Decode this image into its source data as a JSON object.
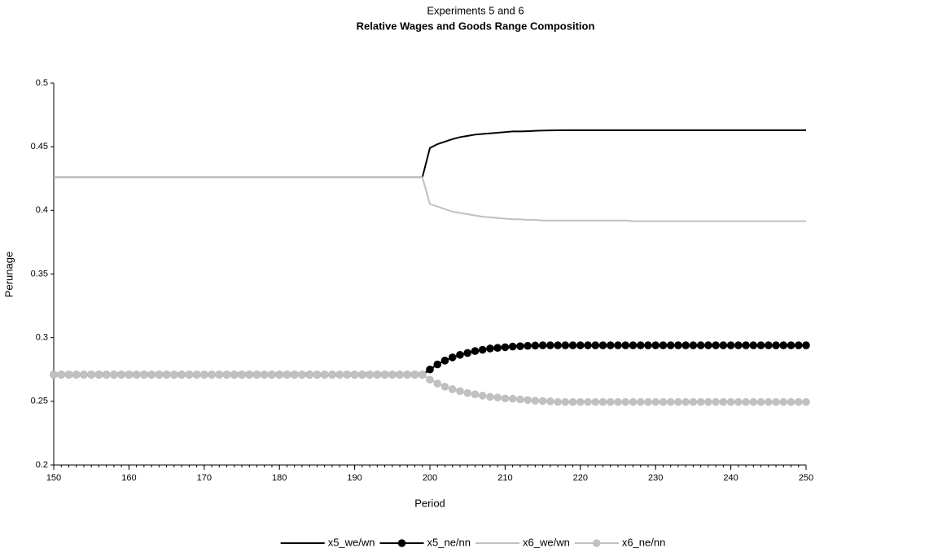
{
  "chart_data": {
    "type": "line",
    "subtitle": "Experiments 5 and 6",
    "title": "Relative Wages and Goods Range Composition",
    "x_label": "Period",
    "y_label": "Perunage",
    "x": [
      150,
      151,
      152,
      153,
      154,
      155,
      156,
      157,
      158,
      159,
      160,
      161,
      162,
      163,
      164,
      165,
      166,
      167,
      168,
      169,
      170,
      171,
      172,
      173,
      174,
      175,
      176,
      177,
      178,
      179,
      180,
      181,
      182,
      183,
      184,
      185,
      186,
      187,
      188,
      189,
      190,
      191,
      192,
      193,
      194,
      195,
      196,
      197,
      198,
      199,
      200,
      201,
      202,
      203,
      204,
      205,
      206,
      207,
      208,
      209,
      210,
      211,
      212,
      213,
      214,
      215,
      216,
      217,
      218,
      219,
      220,
      221,
      222,
      223,
      224,
      225,
      226,
      227,
      228,
      229,
      230,
      231,
      232,
      233,
      234,
      235,
      236,
      237,
      238,
      239,
      240,
      241,
      242,
      243,
      244,
      245,
      246,
      247,
      248,
      249,
      250
    ],
    "xlim": [
      150,
      250
    ],
    "xticks": [
      150,
      160,
      170,
      180,
      190,
      200,
      210,
      220,
      230,
      240,
      250
    ],
    "ylim": [
      0.2,
      0.5
    ],
    "yticks": [
      0.2,
      0.25,
      0.3,
      0.35,
      0.4,
      0.45,
      0.5
    ],
    "series": [
      {
        "name": "x5_we/wn",
        "color": "#000000",
        "marker": false,
        "values": [
          0.426,
          0.426,
          0.426,
          0.426,
          0.426,
          0.426,
          0.426,
          0.426,
          0.426,
          0.426,
          0.426,
          0.426,
          0.426,
          0.426,
          0.426,
          0.426,
          0.426,
          0.426,
          0.426,
          0.426,
          0.426,
          0.426,
          0.426,
          0.426,
          0.426,
          0.426,
          0.426,
          0.426,
          0.426,
          0.426,
          0.426,
          0.426,
          0.426,
          0.426,
          0.426,
          0.426,
          0.426,
          0.426,
          0.426,
          0.426,
          0.426,
          0.426,
          0.426,
          0.426,
          0.426,
          0.426,
          0.426,
          0.426,
          0.426,
          0.426,
          0.449,
          0.452,
          0.454,
          0.456,
          0.4575,
          0.4585,
          0.4595,
          0.46,
          0.4605,
          0.461,
          0.4615,
          0.462,
          0.462,
          0.4622,
          0.4625,
          0.4627,
          0.4628,
          0.4629,
          0.463,
          0.463,
          0.463,
          0.463,
          0.463,
          0.463,
          0.463,
          0.463,
          0.463,
          0.463,
          0.463,
          0.463,
          0.463,
          0.463,
          0.463,
          0.463,
          0.463,
          0.463,
          0.463,
          0.463,
          0.463,
          0.463,
          0.463,
          0.463,
          0.463,
          0.463,
          0.463,
          0.463,
          0.463,
          0.463,
          0.463,
          0.463,
          0.463
        ]
      },
      {
        "name": "x5_ne/nn",
        "color": "#000000",
        "marker": true,
        "values": [
          0.271,
          0.271,
          0.271,
          0.271,
          0.271,
          0.271,
          0.271,
          0.271,
          0.271,
          0.271,
          0.271,
          0.271,
          0.271,
          0.271,
          0.271,
          0.271,
          0.271,
          0.271,
          0.271,
          0.271,
          0.271,
          0.271,
          0.271,
          0.271,
          0.271,
          0.271,
          0.271,
          0.271,
          0.271,
          0.271,
          0.271,
          0.271,
          0.271,
          0.271,
          0.271,
          0.271,
          0.271,
          0.271,
          0.271,
          0.271,
          0.271,
          0.271,
          0.271,
          0.271,
          0.271,
          0.271,
          0.271,
          0.271,
          0.271,
          0.271,
          0.275,
          0.279,
          0.282,
          0.2845,
          0.2865,
          0.288,
          0.2895,
          0.2905,
          0.2915,
          0.292,
          0.2925,
          0.293,
          0.2933,
          0.2936,
          0.2938,
          0.294,
          0.294,
          0.294,
          0.294,
          0.294,
          0.294,
          0.294,
          0.294,
          0.294,
          0.294,
          0.294,
          0.294,
          0.294,
          0.294,
          0.294,
          0.294,
          0.294,
          0.294,
          0.294,
          0.294,
          0.294,
          0.294,
          0.294,
          0.294,
          0.294,
          0.294,
          0.294,
          0.294,
          0.294,
          0.294,
          0.294,
          0.294,
          0.294,
          0.294,
          0.294,
          0.294
        ]
      },
      {
        "name": "x6_we/wn",
        "color": "#c0c0c0",
        "marker": false,
        "values": [
          0.426,
          0.426,
          0.426,
          0.426,
          0.426,
          0.426,
          0.426,
          0.426,
          0.426,
          0.426,
          0.426,
          0.426,
          0.426,
          0.426,
          0.426,
          0.426,
          0.426,
          0.426,
          0.426,
          0.426,
          0.426,
          0.426,
          0.426,
          0.426,
          0.426,
          0.426,
          0.426,
          0.426,
          0.426,
          0.426,
          0.426,
          0.426,
          0.426,
          0.426,
          0.426,
          0.426,
          0.426,
          0.426,
          0.426,
          0.426,
          0.426,
          0.426,
          0.426,
          0.426,
          0.426,
          0.426,
          0.426,
          0.426,
          0.426,
          0.426,
          0.405,
          0.403,
          0.401,
          0.399,
          0.398,
          0.397,
          0.396,
          0.395,
          0.3945,
          0.394,
          0.3935,
          0.393,
          0.393,
          0.3925,
          0.3925,
          0.392,
          0.392,
          0.392,
          0.392,
          0.392,
          0.392,
          0.392,
          0.392,
          0.392,
          0.392,
          0.392,
          0.392,
          0.3915,
          0.3915,
          0.3915,
          0.3915,
          0.3915,
          0.3915,
          0.3915,
          0.3915,
          0.3915,
          0.3915,
          0.3915,
          0.3915,
          0.3915,
          0.3915,
          0.3915,
          0.3915,
          0.3915,
          0.3915,
          0.3915,
          0.3915,
          0.3915,
          0.3915,
          0.3915,
          0.3915
        ]
      },
      {
        "name": "x6_ne/nn",
        "color": "#c0c0c0",
        "marker": true,
        "values": [
          0.271,
          0.271,
          0.271,
          0.271,
          0.271,
          0.271,
          0.271,
          0.271,
          0.271,
          0.271,
          0.271,
          0.271,
          0.271,
          0.271,
          0.271,
          0.271,
          0.271,
          0.271,
          0.271,
          0.271,
          0.271,
          0.271,
          0.271,
          0.271,
          0.271,
          0.271,
          0.271,
          0.271,
          0.271,
          0.271,
          0.271,
          0.271,
          0.271,
          0.271,
          0.271,
          0.271,
          0.271,
          0.271,
          0.271,
          0.271,
          0.271,
          0.271,
          0.271,
          0.271,
          0.271,
          0.271,
          0.271,
          0.271,
          0.271,
          0.271,
          0.267,
          0.264,
          0.2615,
          0.2595,
          0.258,
          0.2565,
          0.2555,
          0.2545,
          0.2535,
          0.253,
          0.2523,
          0.252,
          0.2515,
          0.251,
          0.2505,
          0.2503,
          0.25,
          0.2495,
          0.2495,
          0.2495,
          0.2495,
          0.2495,
          0.2495,
          0.2495,
          0.2495,
          0.2495,
          0.2495,
          0.2495,
          0.2495,
          0.2495,
          0.2495,
          0.2495,
          0.2495,
          0.2495,
          0.2495,
          0.2495,
          0.2495,
          0.2495,
          0.2495,
          0.2495,
          0.2495,
          0.2495,
          0.2495,
          0.2495,
          0.2495,
          0.2495,
          0.2495,
          0.2495,
          0.2495,
          0.2495,
          0.2495
        ]
      }
    ]
  }
}
